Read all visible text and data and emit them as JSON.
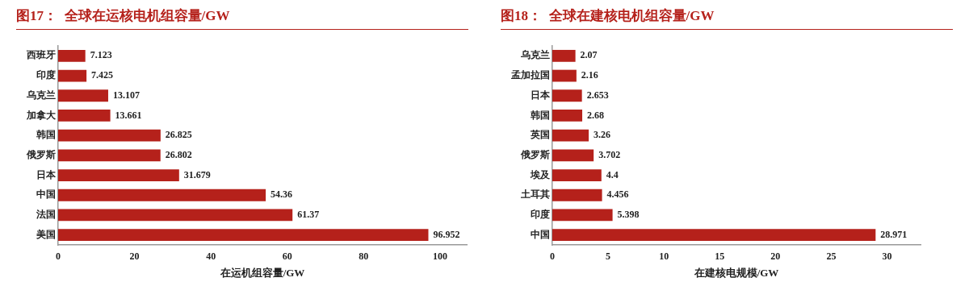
{
  "chart_data": [
    {
      "type": "bar",
      "orientation": "horizontal",
      "title": "图17：  全球在运核电机组容量/GW",
      "xlabel": "在运机组容量/GW",
      "categories": [
        "西班牙",
        "印度",
        "乌克兰",
        "加拿大",
        "韩国",
        "俄罗斯",
        "日本",
        "中国",
        "法国",
        "美国"
      ],
      "values": [
        7.123,
        7.425,
        13.107,
        13.661,
        26.825,
        26.802,
        31.679,
        54.36,
        61.37,
        96.952
      ],
      "color": "#b5211b",
      "xlim": [
        0,
        107
      ],
      "xticks": [
        0,
        20,
        40,
        60,
        80,
        100
      ],
      "grid": false,
      "legend": false,
      "data_labels": true
    },
    {
      "type": "bar",
      "orientation": "horizontal",
      "title": "图18：  全球在建核电机组容量/GW",
      "xlabel": "在建核电规模/GW",
      "categories": [
        "乌克兰",
        "孟加拉国",
        "日本",
        "韩国",
        "英国",
        "俄罗斯",
        "埃及",
        "土耳其",
        "印度",
        "中国"
      ],
      "values": [
        2.07,
        2.16,
        2.653,
        2.68,
        3.26,
        3.702,
        4.4,
        4.456,
        5.398,
        28.971
      ],
      "color": "#b5211b",
      "xlim": [
        0,
        33
      ],
      "xticks": [
        0,
        5,
        10,
        15,
        20,
        25,
        30
      ],
      "grid": false,
      "legend": false,
      "data_labels": true
    }
  ]
}
